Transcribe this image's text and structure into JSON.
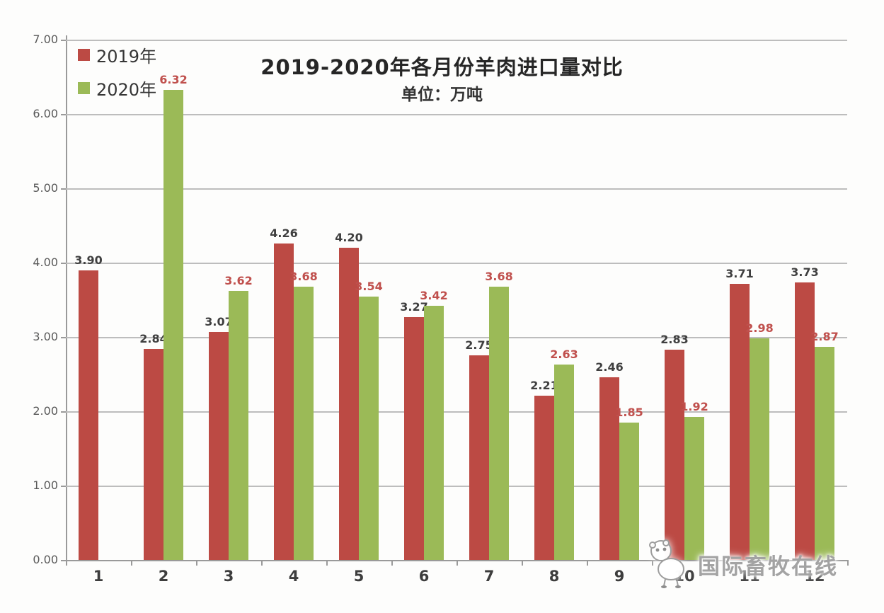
{
  "chart_data": {
    "type": "bar",
    "title": "2019-2020年各月份羊肉进口量对比",
    "subtitle": "单位：万吨",
    "categories": [
      "1",
      "2",
      "3",
      "4",
      "5",
      "6",
      "7",
      "8",
      "9",
      "10",
      "11",
      "12"
    ],
    "series": [
      {
        "name": "2019年",
        "color": "#bc4a44",
        "label_color": "#3f3f3f",
        "values": [
          3.9,
          2.84,
          3.07,
          4.26,
          4.2,
          3.27,
          2.75,
          2.21,
          2.46,
          2.83,
          3.71,
          3.73
        ]
      },
      {
        "name": "2020年",
        "color": "#9bba57",
        "label_color": "#c0504d",
        "values": [
          null,
          6.32,
          3.62,
          3.68,
          3.54,
          3.42,
          3.68,
          2.63,
          1.85,
          1.92,
          2.98,
          2.87
        ]
      }
    ],
    "ylim": [
      0,
      7
    ],
    "ytick_step": 1,
    "ytick_labels": [
      "0.00",
      "1.00",
      "2.00",
      "3.00",
      "4.00",
      "5.00",
      "6.00",
      "7.00"
    ],
    "xlabel": "",
    "ylabel": "",
    "grid": true,
    "legend_position": "top-left",
    "value_labels_shown": true
  },
  "watermark": {
    "text": "国际畜牧在线",
    "icon": "sheep-mascot-icon"
  }
}
